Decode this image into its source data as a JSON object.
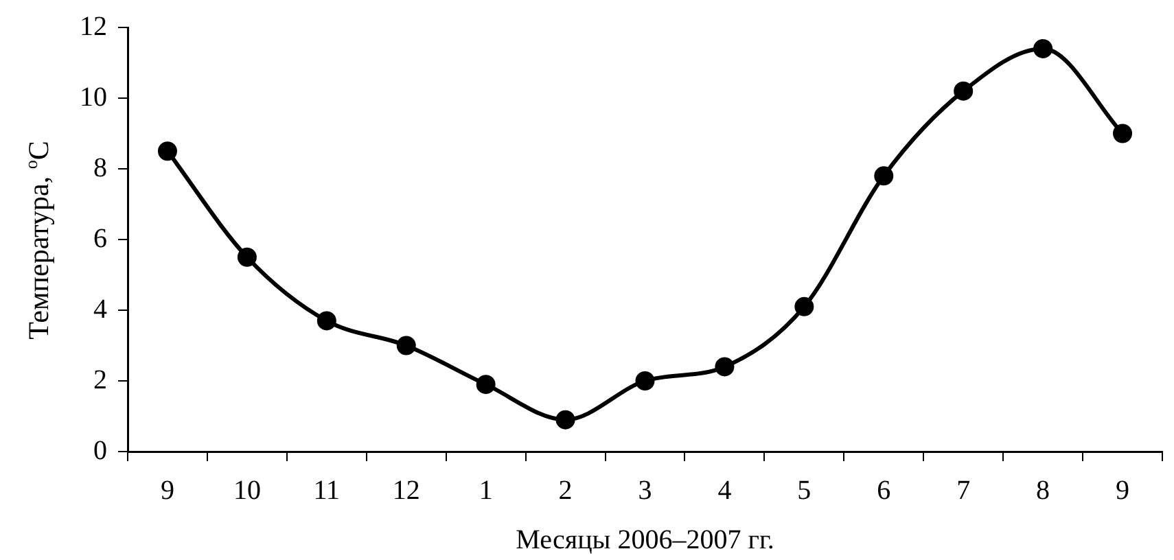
{
  "chart_data": {
    "type": "line",
    "xlabel": "Месяцы 2006–2007 гг.",
    "ylabel": "Температура, $^{o}$C",
    "categories": [
      "9",
      "10",
      "11",
      "12",
      "1",
      "2",
      "3",
      "4",
      "5",
      "6",
      "7",
      "8",
      "9"
    ],
    "series": [
      {
        "color": "#000000",
        "values": [
          8.5,
          5.5,
          3.7,
          3.0,
          1.9,
          0.9,
          2.0,
          2.4,
          4.1,
          7.8,
          10.2,
          11.4,
          9.0
        ]
      }
    ],
    "ylim": [
      0,
      12
    ],
    "yticks": [
      0,
      2,
      4,
      6,
      8,
      10,
      12
    ],
    "grid": false,
    "legend": false,
    "marker": "circle",
    "line_style": "solid"
  }
}
